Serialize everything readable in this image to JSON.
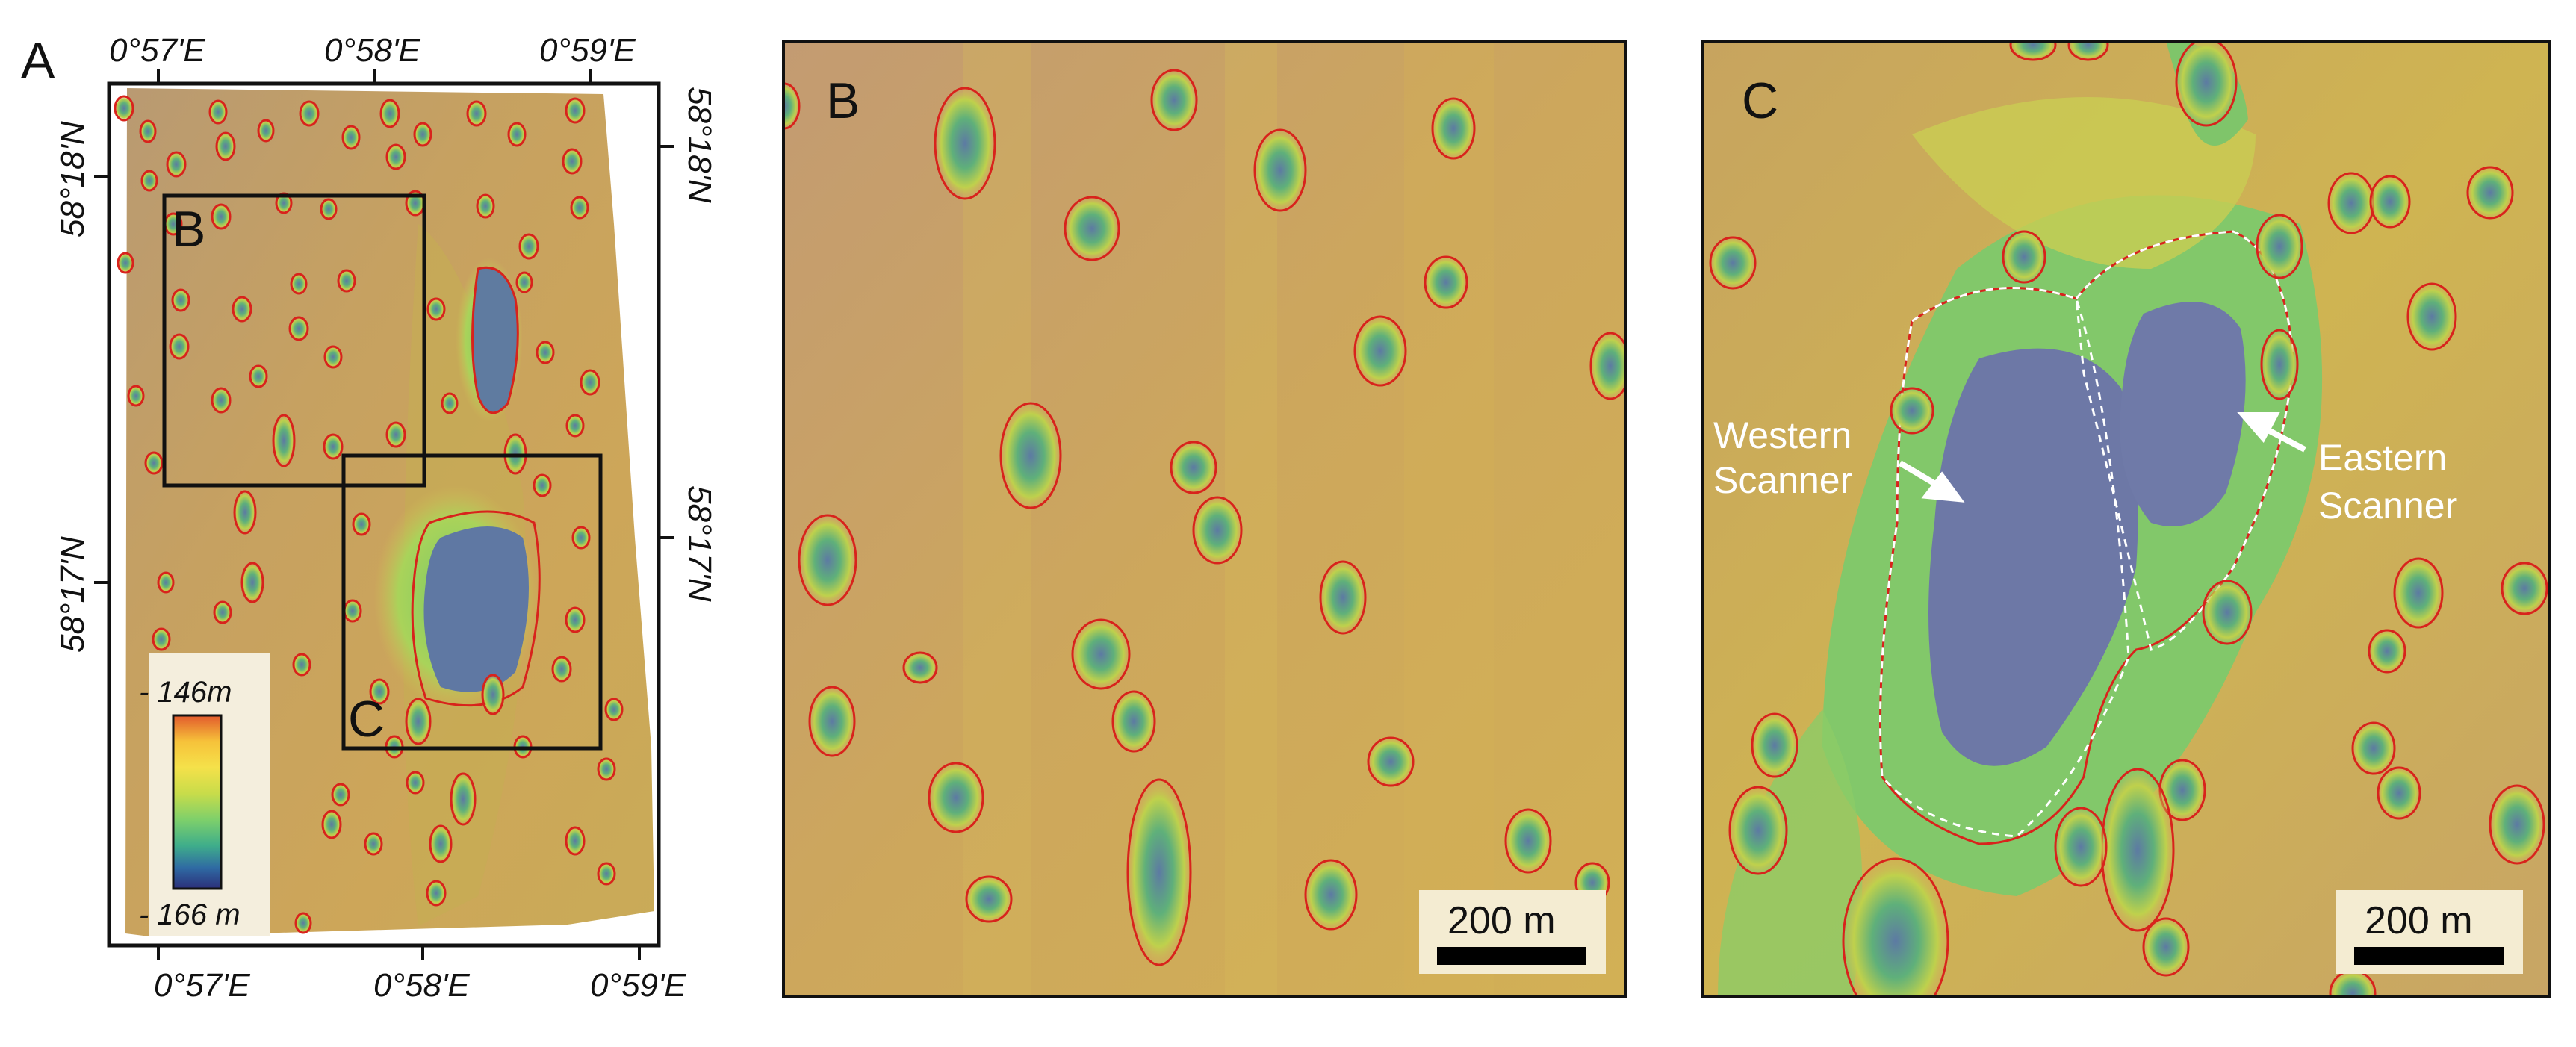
{
  "figure": {
    "panels": [
      {
        "id": "A",
        "letter": "A"
      },
      {
        "id": "B",
        "letter": "B"
      },
      {
        "id": "C",
        "letter": "C"
      }
    ],
    "panel_a": {
      "top_longitudes": [
        "0°57'E",
        "0°58'E",
        "0°59'E"
      ],
      "bottom_longitudes": [
        "0°57'E",
        "0°58'E",
        "0°59'E"
      ],
      "left_latitudes": [
        "58°18'N",
        "58°17'N"
      ],
      "right_latitudes": [
        "58°18'N",
        "58°17'N"
      ],
      "inset_labels": [
        "B",
        "C"
      ],
      "legend": {
        "top_label": "- 146m",
        "bottom_label": "- 166 m",
        "colors": [
          "#e25a2c",
          "#f6c23a",
          "#f5e14a",
          "#c8dc4a",
          "#7fd06a",
          "#3fae8a",
          "#2f6aa3",
          "#2b2f7a"
        ]
      }
    },
    "panel_b": {
      "scale_label": "200 m"
    },
    "panel_c": {
      "scale_label": "200 m",
      "annotations": [
        {
          "line1": "Western",
          "line2": "Scanner"
        },
        {
          "line1": "Eastern",
          "line2": "Scanner"
        }
      ]
    },
    "colors": {
      "outline_red": "#d8231c",
      "seabed_tan": "#c9a267",
      "shallow_yellow": "#d7c04c",
      "mid_green": "#7fc76a",
      "deep_blue": "#6e79a6",
      "frame": "#111111"
    }
  }
}
